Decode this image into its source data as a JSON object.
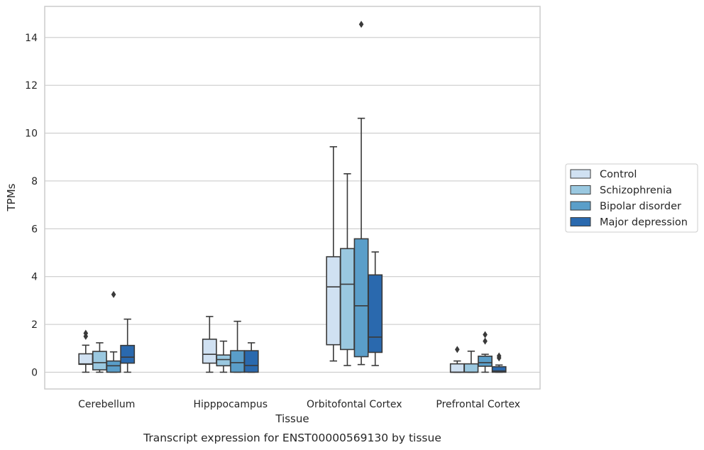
{
  "chart_data": {
    "type": "boxplot",
    "title": "",
    "caption": "Transcript expression for ENST00000569130 by tissue",
    "xlabel": "Tissue",
    "ylabel": "TPMs",
    "ylim": [
      -0.7,
      15.3
    ],
    "yticks": [
      0,
      2,
      4,
      6,
      8,
      10,
      12,
      14
    ],
    "grid": true,
    "legend_position": "right",
    "categories": [
      "Cerebellum",
      "Hipppocampus",
      "Orbitofontal Cortex",
      "Prefrontal Cortex"
    ],
    "series": [
      {
        "name": "Control",
        "color": "#d0e1f2",
        "boxes": [
          {
            "whislo": 0.0,
            "q1": 0.33,
            "med": 0.35,
            "q3": 0.77,
            "whishi": 1.13,
            "fliers": [
              1.5,
              1.63
            ]
          },
          {
            "whislo": 0.0,
            "q1": 0.38,
            "med": 0.75,
            "q3": 1.38,
            "whishi": 2.33,
            "fliers": []
          },
          {
            "whislo": 0.47,
            "q1": 1.15,
            "med": 3.57,
            "q3": 4.83,
            "whishi": 9.43,
            "fliers": []
          },
          {
            "whislo": 0.0,
            "q1": 0.0,
            "med": 0.0,
            "q3": 0.35,
            "whishi": 0.47,
            "fliers": [
              0.95
            ]
          }
        ]
      },
      {
        "name": "Schizophrenia",
        "color": "#9ac8e0",
        "boxes": [
          {
            "whislo": 0.0,
            "q1": 0.1,
            "med": 0.4,
            "q3": 0.87,
            "whishi": 1.23,
            "fliers": []
          },
          {
            "whislo": 0.0,
            "q1": 0.27,
            "med": 0.53,
            "q3": 0.72,
            "whishi": 1.3,
            "fliers": []
          },
          {
            "whislo": 0.28,
            "q1": 0.95,
            "med": 3.68,
            "q3": 5.17,
            "whishi": 8.3,
            "fliers": []
          },
          {
            "whislo": 0.0,
            "q1": 0.0,
            "med": 0.0,
            "q3": 0.35,
            "whishi": 0.88,
            "fliers": []
          }
        ]
      },
      {
        "name": "Bipolar disorder",
        "color": "#5a9ec9",
        "boxes": [
          {
            "whislo": 0.0,
            "q1": 0.0,
            "med": 0.27,
            "q3": 0.47,
            "whishi": 0.85,
            "fliers": [
              3.25
            ]
          },
          {
            "whislo": 0.0,
            "q1": 0.0,
            "med": 0.4,
            "q3": 0.9,
            "whishi": 2.13,
            "fliers": []
          },
          {
            "whislo": 0.32,
            "q1": 0.65,
            "med": 2.78,
            "q3": 5.58,
            "whishi": 10.62,
            "fliers": [
              14.55
            ]
          },
          {
            "whislo": 0.0,
            "q1": 0.25,
            "med": 0.4,
            "q3": 0.67,
            "whishi": 0.75,
            "fliers": [
              1.3,
              1.57
            ]
          }
        ]
      },
      {
        "name": "Major depression",
        "color": "#2a69ae",
        "boxes": [
          {
            "whislo": 0.0,
            "q1": 0.38,
            "med": 0.63,
            "q3": 1.12,
            "whishi": 2.22,
            "fliers": []
          },
          {
            "whislo": 0.0,
            "q1": 0.0,
            "med": 0.28,
            "q3": 0.9,
            "whishi": 1.23,
            "fliers": []
          },
          {
            "whislo": 0.28,
            "q1": 0.83,
            "med": 1.47,
            "q3": 4.07,
            "whishi": 5.03,
            "fliers": []
          },
          {
            "whislo": 0.0,
            "q1": 0.0,
            "med": 0.05,
            "q3": 0.23,
            "whishi": 0.3,
            "fliers": [
              0.6,
              0.68
            ]
          }
        ]
      }
    ]
  }
}
